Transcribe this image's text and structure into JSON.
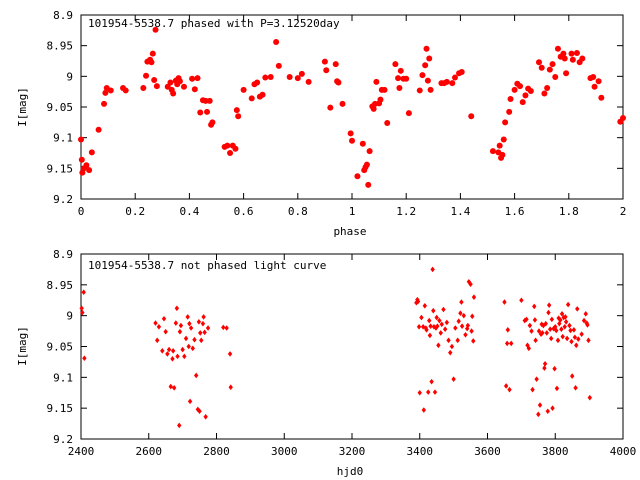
{
  "colors": {
    "points": "#ff0000",
    "axes": "#000000",
    "background": "#ffffff"
  },
  "chart_data": [
    {
      "type": "scatter",
      "title": "101954-5538.7 phased with P=3.12520day",
      "xlabel": "phase",
      "ylabel": "I[mag]",
      "xlim": [
        0,
        2
      ],
      "ylim": [
        9.2,
        8.9
      ],
      "y_inverted": true,
      "grid": false,
      "legend": "none",
      "marker": "filled-circle",
      "xticks": [
        0,
        0.2,
        0.4,
        0.6,
        0.8,
        1,
        1.2,
        1.4,
        1.6,
        1.8,
        2
      ],
      "xtick_labels": [
        "0",
        "0.2",
        "0.4",
        "0.6",
        "0.8",
        "1",
        "1.2",
        "1.4",
        "1.6",
        "1.8",
        "2"
      ],
      "yticks": [
        8.9,
        8.95,
        9,
        9.05,
        9.1,
        9.15,
        9.2
      ],
      "ytick_labels": [
        "8.9",
        "8.95",
        "9",
        "9.05",
        "9.1",
        "9.15",
        "9.2"
      ],
      "points": [
        [
          0.0,
          9.103
        ],
        [
          0.003,
          9.136
        ],
        [
          0.005,
          9.157
        ],
        [
          0.01,
          9.15
        ],
        [
          0.02,
          9.145
        ],
        [
          0.03,
          9.153
        ],
        [
          0.04,
          9.124
        ],
        [
          0.065,
          9.087
        ],
        [
          0.085,
          9.045
        ],
        [
          0.09,
          9.027
        ],
        [
          0.095,
          9.019
        ],
        [
          0.11,
          9.023
        ],
        [
          0.155,
          9.019
        ],
        [
          0.165,
          9.023
        ],
        [
          0.23,
          9.019
        ],
        [
          0.24,
          8.999
        ],
        [
          0.245,
          8.976
        ],
        [
          0.255,
          8.973
        ],
        [
          0.26,
          8.977
        ],
        [
          0.265,
          8.963
        ],
        [
          0.27,
          9.006
        ],
        [
          0.275,
          8.924
        ],
        [
          0.28,
          9.016
        ],
        [
          0.32,
          9.017
        ],
        [
          0.33,
          9.01
        ],
        [
          0.335,
          9.022
        ],
        [
          0.34,
          9.028
        ],
        [
          0.35,
          9.007
        ],
        [
          0.355,
          9.013
        ],
        [
          0.36,
          9.003
        ],
        [
          0.365,
          9.008
        ],
        [
          0.38,
          9.017
        ],
        [
          0.41,
          9.004
        ],
        [
          0.42,
          9.021
        ],
        [
          0.43,
          9.003
        ],
        [
          0.44,
          9.059
        ],
        [
          0.45,
          9.039
        ],
        [
          0.46,
          9.04
        ],
        [
          0.465,
          9.058
        ],
        [
          0.475,
          9.04
        ],
        [
          0.48,
          9.079
        ],
        [
          0.485,
          9.075
        ],
        [
          0.53,
          9.115
        ],
        [
          0.54,
          9.113
        ],
        [
          0.55,
          9.125
        ],
        [
          0.56,
          9.113
        ],
        [
          0.57,
          9.118
        ],
        [
          0.575,
          9.055
        ],
        [
          0.58,
          9.065
        ],
        [
          0.6,
          9.022
        ],
        [
          0.63,
          9.036
        ],
        [
          0.64,
          9.013
        ],
        [
          0.65,
          9.01
        ],
        [
          0.66,
          9.033
        ],
        [
          0.67,
          9.03
        ],
        [
          0.68,
          9.002
        ],
        [
          0.7,
          9.001
        ],
        [
          0.72,
          8.944
        ],
        [
          0.73,
          8.983
        ],
        [
          0.77,
          9.001
        ],
        [
          0.8,
          9.003
        ],
        [
          0.815,
          8.996
        ],
        [
          0.84,
          9.009
        ],
        [
          0.9,
          8.976
        ],
        [
          0.905,
          8.99
        ],
        [
          0.92,
          9.051
        ],
        [
          0.94,
          8.98
        ],
        [
          0.945,
          9.008
        ],
        [
          0.95,
          9.01
        ],
        [
          0.965,
          9.045
        ],
        [
          0.995,
          9.093
        ],
        [
          1.0,
          9.105
        ],
        [
          1.02,
          9.163
        ],
        [
          1.04,
          9.11
        ],
        [
          1.045,
          9.153
        ],
        [
          1.05,
          9.148
        ],
        [
          1.055,
          9.144
        ],
        [
          1.06,
          9.177
        ],
        [
          1.065,
          9.122
        ],
        [
          1.075,
          9.049
        ],
        [
          1.08,
          9.053
        ],
        [
          1.085,
          9.045
        ],
        [
          1.09,
          9.009
        ],
        [
          1.1,
          9.044
        ],
        [
          1.105,
          9.038
        ],
        [
          1.11,
          9.022
        ],
        [
          1.12,
          9.022
        ],
        [
          1.13,
          9.076
        ],
        [
          1.16,
          8.98
        ],
        [
          1.17,
          9.003
        ],
        [
          1.175,
          9.019
        ],
        [
          1.18,
          8.991
        ],
        [
          1.19,
          9.004
        ],
        [
          1.2,
          9.004
        ],
        [
          1.21,
          9.06
        ],
        [
          1.25,
          9.023
        ],
        [
          1.26,
          8.998
        ],
        [
          1.27,
          8.982
        ],
        [
          1.275,
          8.955
        ],
        [
          1.28,
          9.007
        ],
        [
          1.285,
          8.971
        ],
        [
          1.29,
          9.022
        ],
        [
          1.33,
          9.011
        ],
        [
          1.34,
          9.011
        ],
        [
          1.35,
          9.009
        ],
        [
          1.37,
          9.011
        ],
        [
          1.38,
          9.002
        ],
        [
          1.395,
          8.995
        ],
        [
          1.405,
          8.993
        ],
        [
          1.44,
          9.065
        ],
        [
          1.52,
          9.122
        ],
        [
          1.54,
          9.124
        ],
        [
          1.545,
          9.113
        ],
        [
          1.55,
          9.133
        ],
        [
          1.555,
          9.128
        ],
        [
          1.56,
          9.103
        ],
        [
          1.565,
          9.075
        ],
        [
          1.58,
          9.058
        ],
        [
          1.585,
          9.037
        ],
        [
          1.6,
          9.022
        ],
        [
          1.61,
          9.012
        ],
        [
          1.62,
          9.016
        ],
        [
          1.63,
          9.042
        ],
        [
          1.64,
          9.031
        ],
        [
          1.65,
          9.02
        ],
        [
          1.66,
          9.024
        ],
        [
          1.69,
          8.977
        ],
        [
          1.7,
          8.986
        ],
        [
          1.71,
          9.028
        ],
        [
          1.72,
          9.019
        ],
        [
          1.73,
          8.989
        ],
        [
          1.74,
          8.98
        ],
        [
          1.75,
          9.001
        ],
        [
          1.76,
          8.955
        ],
        [
          1.77,
          8.968
        ],
        [
          1.78,
          8.963
        ],
        [
          1.785,
          8.971
        ],
        [
          1.79,
          8.995
        ],
        [
          1.81,
          8.963
        ],
        [
          1.815,
          8.973
        ],
        [
          1.83,
          8.962
        ],
        [
          1.84,
          8.977
        ],
        [
          1.85,
          8.971
        ],
        [
          1.88,
          9.003
        ],
        [
          1.89,
          9.001
        ],
        [
          1.895,
          9.017
        ],
        [
          1.91,
          9.008
        ],
        [
          1.92,
          9.035
        ],
        [
          1.99,
          9.074
        ],
        [
          2.0,
          9.068
        ]
      ]
    },
    {
      "type": "scatter",
      "title": "101954-5538.7 not phased light curve",
      "xlabel": "hjd0",
      "ylabel": "I[mag]",
      "xlim": [
        2400,
        4000
      ],
      "ylim": [
        9.2,
        8.9
      ],
      "y_inverted": true,
      "grid": false,
      "legend": "none",
      "marker": "small-diamond",
      "xticks": [
        2400,
        2600,
        2800,
        3000,
        3200,
        3400,
        3600,
        3800,
        4000
      ],
      "xtick_labels": [
        "2400",
        "2600",
        "2800",
        "3000",
        "3200",
        "3400",
        "3600",
        "3800",
        "4000"
      ],
      "yticks": [
        8.9,
        8.95,
        9,
        9.05,
        9.1,
        9.15,
        9.2
      ],
      "ytick_labels": [
        "8.9",
        "8.95",
        "9",
        "9.05",
        "9.1",
        "9.15",
        "9.2"
      ],
      "points": [
        [
          2402,
          8.988
        ],
        [
          2404,
          8.995
        ],
        [
          2408,
          8.962
        ],
        [
          2410,
          9.069
        ],
        [
          2620,
          9.012
        ],
        [
          2625,
          9.04
        ],
        [
          2630,
          9.018
        ],
        [
          2640,
          9.057
        ],
        [
          2645,
          9.005
        ],
        [
          2650,
          9.026
        ],
        [
          2655,
          9.062
        ],
        [
          2660,
          9.055
        ],
        [
          2665,
          9.115
        ],
        [
          2670,
          9.07
        ],
        [
          2672,
          9.057
        ],
        [
          2675,
          9.117
        ],
        [
          2680,
          9.012
        ],
        [
          2683,
          8.988
        ],
        [
          2685,
          9.066
        ],
        [
          2690,
          9.178
        ],
        [
          2692,
          9.026
        ],
        [
          2695,
          9.016
        ],
        [
          2700,
          9.055
        ],
        [
          2705,
          9.066
        ],
        [
          2710,
          9.037
        ],
        [
          2715,
          9.002
        ],
        [
          2718,
          9.05
        ],
        [
          2720,
          9.013
        ],
        [
          2722,
          9.139
        ],
        [
          2725,
          9.02
        ],
        [
          2730,
          9.053
        ],
        [
          2735,
          9.039
        ],
        [
          2740,
          9.097
        ],
        [
          2745,
          9.152
        ],
        [
          2748,
          9.01
        ],
        [
          2750,
          9.155
        ],
        [
          2752,
          9.028
        ],
        [
          2755,
          9.04
        ],
        [
          2760,
          9.013
        ],
        [
          2762,
          9.002
        ],
        [
          2765,
          9.027
        ],
        [
          2768,
          9.164
        ],
        [
          2775,
          9.02
        ],
        [
          2820,
          9.019
        ],
        [
          2830,
          9.02
        ],
        [
          2840,
          9.062
        ],
        [
          2842,
          9.116
        ],
        [
          3390,
          8.979
        ],
        [
          3393,
          8.974
        ],
        [
          3395,
          8.977
        ],
        [
          3398,
          9.018
        ],
        [
          3400,
          9.125
        ],
        [
          3405,
          9.003
        ],
        [
          3410,
          9.018
        ],
        [
          3412,
          9.153
        ],
        [
          3415,
          8.984
        ],
        [
          3418,
          9.02
        ],
        [
          3420,
          9.023
        ],
        [
          3425,
          9.124
        ],
        [
          3428,
          9.008
        ],
        [
          3430,
          9.032
        ],
        [
          3432,
          9.017
        ],
        [
          3435,
          9.107
        ],
        [
          3438,
          8.925
        ],
        [
          3440,
          8.992
        ],
        [
          3442,
          9.018
        ],
        [
          3445,
          9.124
        ],
        [
          3448,
          9.02
        ],
        [
          3450,
          9.003
        ],
        [
          3452,
          9.017
        ],
        [
          3455,
          9.048
        ],
        [
          3458,
          9.008
        ],
        [
          3462,
          9.028
        ],
        [
          3465,
          9.014
        ],
        [
          3470,
          8.99
        ],
        [
          3475,
          9.022
        ],
        [
          3480,
          9.011
        ],
        [
          3485,
          9.04
        ],
        [
          3490,
          9.06
        ],
        [
          3495,
          9.05
        ],
        [
          3500,
          9.103
        ],
        [
          3505,
          9.02
        ],
        [
          3512,
          9.04
        ],
        [
          3515,
          9.009
        ],
        [
          3520,
          8.996
        ],
        [
          3523,
          8.978
        ],
        [
          3525,
          9.017
        ],
        [
          3530,
          9.0
        ],
        [
          3535,
          9.031
        ],
        [
          3540,
          9.021
        ],
        [
          3542,
          9.016
        ],
        [
          3545,
          8.945
        ],
        [
          3550,
          8.949
        ],
        [
          3553,
          9.025
        ],
        [
          3555,
          9.001
        ],
        [
          3558,
          9.041
        ],
        [
          3560,
          8.97
        ],
        [
          3650,
          8.978
        ],
        [
          3655,
          9.114
        ],
        [
          3658,
          9.045
        ],
        [
          3660,
          9.023
        ],
        [
          3665,
          9.12
        ],
        [
          3670,
          9.045
        ],
        [
          3700,
          8.975
        ],
        [
          3710,
          9.008
        ],
        [
          3715,
          9.006
        ],
        [
          3718,
          9.048
        ],
        [
          3722,
          9.053
        ],
        [
          3725,
          9.016
        ],
        [
          3730,
          9.025
        ],
        [
          3733,
          9.12
        ],
        [
          3738,
          8.985
        ],
        [
          3740,
          9.007
        ],
        [
          3742,
          9.04
        ],
        [
          3745,
          9.103
        ],
        [
          3750,
          9.16
        ],
        [
          3752,
          9.025
        ],
        [
          3755,
          9.145
        ],
        [
          3758,
          9.03
        ],
        [
          3760,
          9.014
        ],
        [
          3762,
          9.028
        ],
        [
          3765,
          9.016
        ],
        [
          3768,
          9.085
        ],
        [
          3770,
          9.078
        ],
        [
          3772,
          9.013
        ],
        [
          3775,
          9.028
        ],
        [
          3778,
          9.155
        ],
        [
          3780,
          8.995
        ],
        [
          3782,
          8.983
        ],
        [
          3785,
          9.022
        ],
        [
          3788,
          9.037
        ],
        [
          3790,
          9.006
        ],
        [
          3792,
          9.15
        ],
        [
          3795,
          9.021
        ],
        [
          3798,
          9.086
        ],
        [
          3800,
          9.018
        ],
        [
          3803,
          9.024
        ],
        [
          3805,
          9.118
        ],
        [
          3808,
          9.04
        ],
        [
          3810,
          9.004
        ],
        [
          3812,
          9.013
        ],
        [
          3815,
          9.007
        ],
        [
          3818,
          9.022
        ],
        [
          3820,
          8.997
        ],
        [
          3822,
          9.034
        ],
        [
          3825,
          9.003
        ],
        [
          3828,
          9.018
        ],
        [
          3830,
          9.002
        ],
        [
          3832,
          9.01
        ],
        [
          3835,
          9.037
        ],
        [
          3838,
          8.982
        ],
        [
          3842,
          9.016
        ],
        [
          3845,
          9.024
        ],
        [
          3848,
          9.042
        ],
        [
          3850,
          9.098
        ],
        [
          3855,
          9.023
        ],
        [
          3858,
          9.035
        ],
        [
          3860,
          9.117
        ],
        [
          3862,
          9.048
        ],
        [
          3865,
          8.989
        ],
        [
          3868,
          9.038
        ],
        [
          3878,
          9.03
        ],
        [
          3885,
          9.008
        ],
        [
          3890,
          8.997
        ],
        [
          3893,
          9.012
        ],
        [
          3895,
          9.015
        ],
        [
          3898,
          9.04
        ],
        [
          3902,
          9.133
        ]
      ]
    }
  ]
}
